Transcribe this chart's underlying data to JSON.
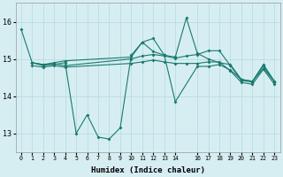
{
  "xlabel": "Humidex (Indice chaleur)",
  "bg_color": "#d6eef2",
  "grid_color": "#b8dde4",
  "line_color": "#1a7a6e",
  "line1_x": [
    0,
    1,
    2,
    3,
    4,
    5,
    6,
    7,
    8,
    9,
    10,
    11,
    12,
    13,
    14,
    16,
    17,
    18,
    19,
    20,
    21,
    22,
    23
  ],
  "line1_y": [
    15.8,
    14.9,
    14.85,
    14.85,
    14.9,
    13.0,
    13.5,
    12.9,
    12.85,
    13.15,
    15.1,
    15.45,
    15.2,
    15.1,
    13.85,
    14.8,
    14.8,
    14.85,
    14.7,
    14.45,
    14.4,
    14.75,
    14.4
  ],
  "line2_x": [
    1,
    2,
    3,
    4,
    10,
    11,
    12,
    13,
    14,
    15,
    16,
    17,
    18,
    19,
    20,
    21,
    22,
    23
  ],
  "line2_y": [
    14.9,
    14.85,
    14.9,
    14.95,
    15.05,
    15.45,
    15.55,
    15.1,
    15.05,
    16.1,
    15.15,
    15.0,
    14.9,
    14.85,
    14.45,
    14.4,
    14.85,
    14.4
  ],
  "line3_x": [
    1,
    2,
    3,
    4,
    10,
    11,
    12,
    13,
    14,
    15,
    16,
    17,
    18,
    19,
    20,
    21,
    22,
    23
  ],
  "line3_y": [
    14.9,
    14.82,
    14.87,
    14.82,
    15.0,
    15.08,
    15.12,
    15.08,
    15.02,
    15.08,
    15.12,
    15.22,
    15.22,
    14.82,
    14.42,
    14.38,
    14.82,
    14.38
  ],
  "line4_x": [
    1,
    2,
    3,
    4,
    10,
    11,
    12,
    13,
    14,
    15,
    16,
    17,
    18,
    19,
    20,
    21,
    22,
    23
  ],
  "line4_y": [
    14.82,
    14.78,
    14.82,
    14.78,
    14.88,
    14.92,
    14.97,
    14.92,
    14.88,
    14.88,
    14.88,
    14.92,
    14.92,
    14.68,
    14.37,
    14.32,
    14.72,
    14.32
  ],
  "ylim": [
    12.5,
    16.5
  ],
  "yticks": [
    13,
    14,
    15,
    16
  ],
  "xticks": [
    0,
    1,
    2,
    3,
    4,
    5,
    6,
    7,
    8,
    9,
    10,
    11,
    12,
    13,
    14,
    16,
    17,
    18,
    19,
    20,
    21,
    22,
    23
  ],
  "xtick_labels": [
    "0",
    "1",
    "2",
    "3",
    "4",
    "5",
    "6",
    "7",
    "8",
    "9",
    "10",
    "11",
    "12",
    "13",
    "14",
    "16",
    "17",
    "18",
    "19",
    "20",
    "21",
    "22",
    "23"
  ],
  "figsize": [
    3.2,
    2.0
  ],
  "dpi": 100
}
